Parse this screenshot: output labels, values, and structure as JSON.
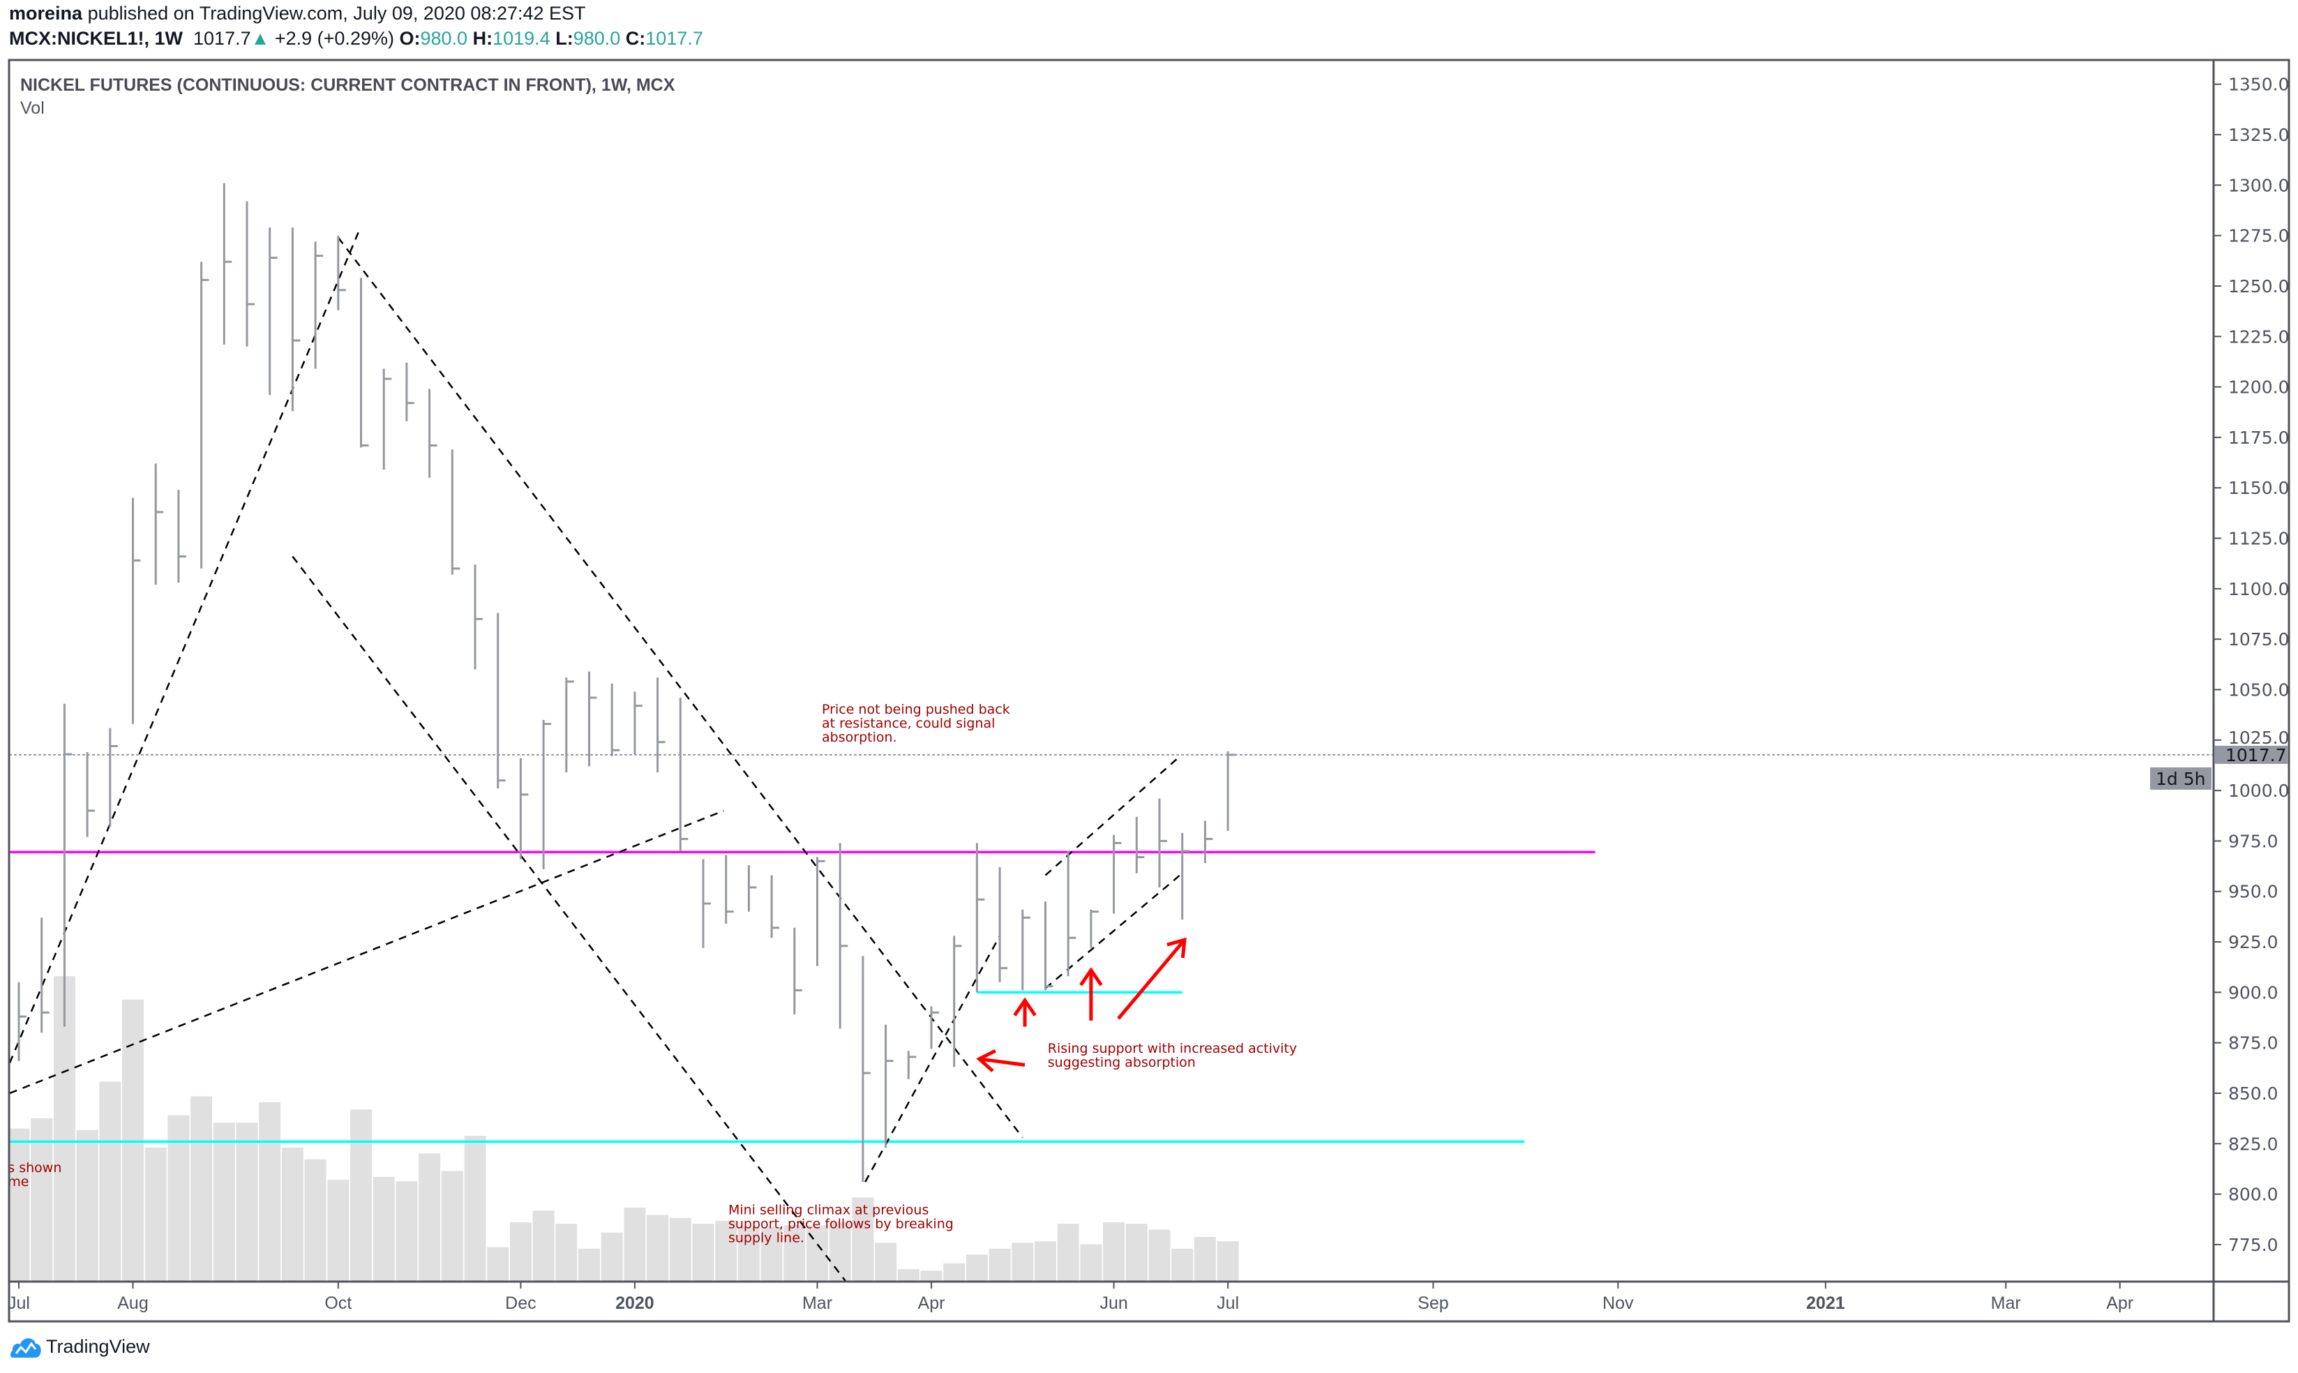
{
  "header": {
    "author": "moreina",
    "published": "published on TradingView.com, July 09, 2020 08:27:42 EST",
    "symbol": "MCX:NICKEL1!, 1W",
    "last": "1017.7",
    "change": "+2.9 (+0.29%)",
    "o_label": "O:",
    "o": "980.0",
    "h_label": "H:",
    "h": "1019.4",
    "l_label": "L:",
    "l": "980.0",
    "c_label": "C:",
    "c": "1017.7"
  },
  "chart_title": "NICKEL FUTURES (CONTINUOUS: CURRENT CONTRACT IN FRONT), 1W, MCX",
  "volume_label": "Vol",
  "footer": {
    "brand": "TradingView",
    "icon": "tradingview-logo-icon"
  },
  "colors": {
    "bar": "#9598a1",
    "volume": "#e0e0e0",
    "up": "#26a69a",
    "resistance": "#ff00ff",
    "support": "#00ffff",
    "arrow": "#ff0000",
    "note_text": "#a30000",
    "axis_text": "#50535e",
    "frame": "#50535e"
  },
  "chart_data": {
    "type": "ohlc",
    "interval": "1W",
    "ylim": [
      757,
      1362
    ],
    "xlim": [
      -0.43,
      96.2
    ],
    "price_ticks": [
      "775.0",
      "800.0",
      "825.0",
      "850.0",
      "875.0",
      "900.0",
      "925.0",
      "950.0",
      "975.0",
      "1000.0",
      "1025.0",
      "1050.0",
      "1075.0",
      "1100.0",
      "1125.0",
      "1150.0",
      "1175.0",
      "1200.0",
      "1225.0",
      "1250.0",
      "1275.0",
      "1300.0",
      "1325.0",
      "1350.0"
    ],
    "time_ticks": [
      {
        "label": "Jul",
        "week": 0,
        "bold": false
      },
      {
        "label": "Aug",
        "week": 5,
        "bold": false
      },
      {
        "label": "Oct",
        "week": 14,
        "bold": false
      },
      {
        "label": "Dec",
        "week": 22,
        "bold": false
      },
      {
        "label": "2020",
        "week": 27,
        "bold": true
      },
      {
        "label": "Mar",
        "week": 35,
        "bold": false
      },
      {
        "label": "Apr",
        "week": 40,
        "bold": false
      },
      {
        "label": "Jun",
        "week": 48,
        "bold": false
      },
      {
        "label": "Jul",
        "week": 53,
        "bold": false
      },
      {
        "label": "Sep",
        "week": 62,
        "bold": false
      },
      {
        "label": "Nov",
        "week": 70.1,
        "bold": false
      },
      {
        "label": "2021",
        "week": 79.2,
        "bold": true
      },
      {
        "label": "Mar",
        "week": 87.1,
        "bold": false
      },
      {
        "label": "Apr",
        "week": 92.1,
        "bold": false
      }
    ],
    "bars_hlc": [
      [
        905,
        866,
        888
      ],
      [
        937,
        880,
        890
      ],
      [
        1043,
        883,
        1018
      ],
      [
        1019,
        977,
        990
      ],
      [
        1031,
        982,
        1022
      ],
      [
        1145,
        1033,
        1114
      ],
      [
        1162,
        1102,
        1138
      ],
      [
        1149,
        1103,
        1116
      ],
      [
        1262,
        1110,
        1253
      ],
      [
        1301,
        1221,
        1262
      ],
      [
        1292,
        1220,
        1241
      ],
      [
        1279,
        1196,
        1264
      ],
      [
        1279,
        1188,
        1223
      ],
      [
        1272,
        1209,
        1265
      ],
      [
        1275,
        1238,
        1248
      ],
      [
        1254,
        1170,
        1171
      ],
      [
        1209,
        1159,
        1204
      ],
      [
        1212,
        1183,
        1192
      ],
      [
        1199,
        1155,
        1171
      ],
      [
        1169,
        1107,
        1110
      ],
      [
        1112,
        1060,
        1085
      ],
      [
        1088,
        1001,
        1005
      ],
      [
        1016,
        966,
        998
      ],
      [
        1035,
        961,
        1033
      ],
      [
        1056,
        1009,
        1054
      ],
      [
        1059,
        1012,
        1046
      ],
      [
        1053,
        1017,
        1020
      ],
      [
        1049,
        1018,
        1042
      ],
      [
        1056,
        1009,
        1024
      ],
      [
        1046,
        970,
        976
      ],
      [
        966,
        922,
        944
      ],
      [
        968,
        934,
        940
      ],
      [
        963,
        940,
        952
      ],
      [
        958,
        927,
        932
      ],
      [
        932,
        889,
        901
      ],
      [
        967,
        913,
        965
      ],
      [
        974,
        882,
        923
      ],
      [
        918,
        806,
        860
      ],
      [
        884,
        823,
        866
      ],
      [
        871,
        857,
        868
      ],
      [
        893,
        872,
        890
      ],
      [
        928,
        863,
        923
      ],
      [
        974,
        900,
        946
      ],
      [
        962,
        905,
        912
      ],
      [
        941,
        901,
        937
      ],
      [
        945,
        901,
        903
      ],
      [
        970,
        908,
        927
      ],
      [
        941,
        922,
        940
      ],
      [
        978,
        939,
        974
      ],
      [
        987,
        959,
        967
      ],
      [
        996,
        952,
        975
      ],
      [
        979,
        936,
        970
      ],
      [
        985,
        964,
        976
      ],
      [
        1019.4,
        980,
        1017.7
      ]
    ],
    "volume_relative": [
      104,
      111,
      208,
      103,
      136,
      192,
      91,
      113,
      126,
      108,
      108,
      122,
      91,
      83,
      69,
      117,
      71,
      68,
      87,
      75,
      99,
      23,
      40,
      48,
      39,
      22,
      33,
      50,
      45,
      43,
      39,
      41,
      37,
      37,
      38,
      38,
      40,
      57,
      26,
      8,
      7,
      12,
      18,
      22,
      26,
      27,
      39,
      25,
      40,
      39,
      35,
      22,
      30,
      27
    ],
    "last_price": {
      "value": "1017.7",
      "price": 1017.7,
      "countdown": "1d 5h"
    },
    "drawings": {
      "dashed_trendlines": [
        {
          "from": [
            -0.4,
            865
          ],
          "to": [
            14.9,
            1277
          ]
        },
        {
          "from": [
            14.0,
            1274
          ],
          "to": [
            44.0,
            828
          ]
        },
        {
          "from": [
            12.0,
            1116
          ],
          "to": [
            36.3,
            756
          ]
        },
        {
          "from": [
            -0.4,
            850
          ],
          "to": [
            30.9,
            990
          ]
        },
        {
          "from": [
            37.1,
            806
          ],
          "to": [
            43.0,
            928
          ]
        },
        {
          "from": [
            45.0,
            958
          ],
          "to": [
            50.9,
            1017
          ]
        },
        {
          "from": [
            45.0,
            902
          ],
          "to": [
            51.0,
            959
          ]
        }
      ],
      "horizontal_lines": [
        {
          "price": 969.5,
          "from": -0.43,
          "to": 69.1,
          "color": "#ff00ff"
        },
        {
          "price": 826,
          "from": -0.43,
          "to": 66.0,
          "color": "#00ffff"
        },
        {
          "price": 900,
          "from": 42.0,
          "to": 51.0,
          "color": "#00ffff"
        }
      ],
      "arrows": [
        {
          "from": [
            44.1,
            864
          ],
          "to": [
            42.1,
            867
          ]
        },
        {
          "from": [
            44.1,
            883
          ],
          "to": [
            44.1,
            896
          ]
        },
        {
          "from": [
            47.0,
            886
          ],
          "to": [
            47.0,
            911
          ]
        },
        {
          "from": [
            48.2,
            887
          ],
          "to": [
            51.1,
            926
          ]
        }
      ]
    },
    "annotations": [
      {
        "week": 35.2,
        "price": 1038,
        "lines": [
          "Price not being pushed back",
          "at resistance, could signal",
          "absorption."
        ]
      },
      {
        "week": 45.1,
        "price": 870,
        "lines": [
          "Rising support with increased activity",
          "suggesting absorption"
        ]
      },
      {
        "week": 31.1,
        "price": 790,
        "lines": [
          "Mini selling climax at previous",
          "support, price follows by breaking",
          "supply line."
        ]
      },
      {
        "week": -0.48,
        "price": 811,
        "lines": [
          "s shown",
          "me"
        ]
      }
    ]
  }
}
